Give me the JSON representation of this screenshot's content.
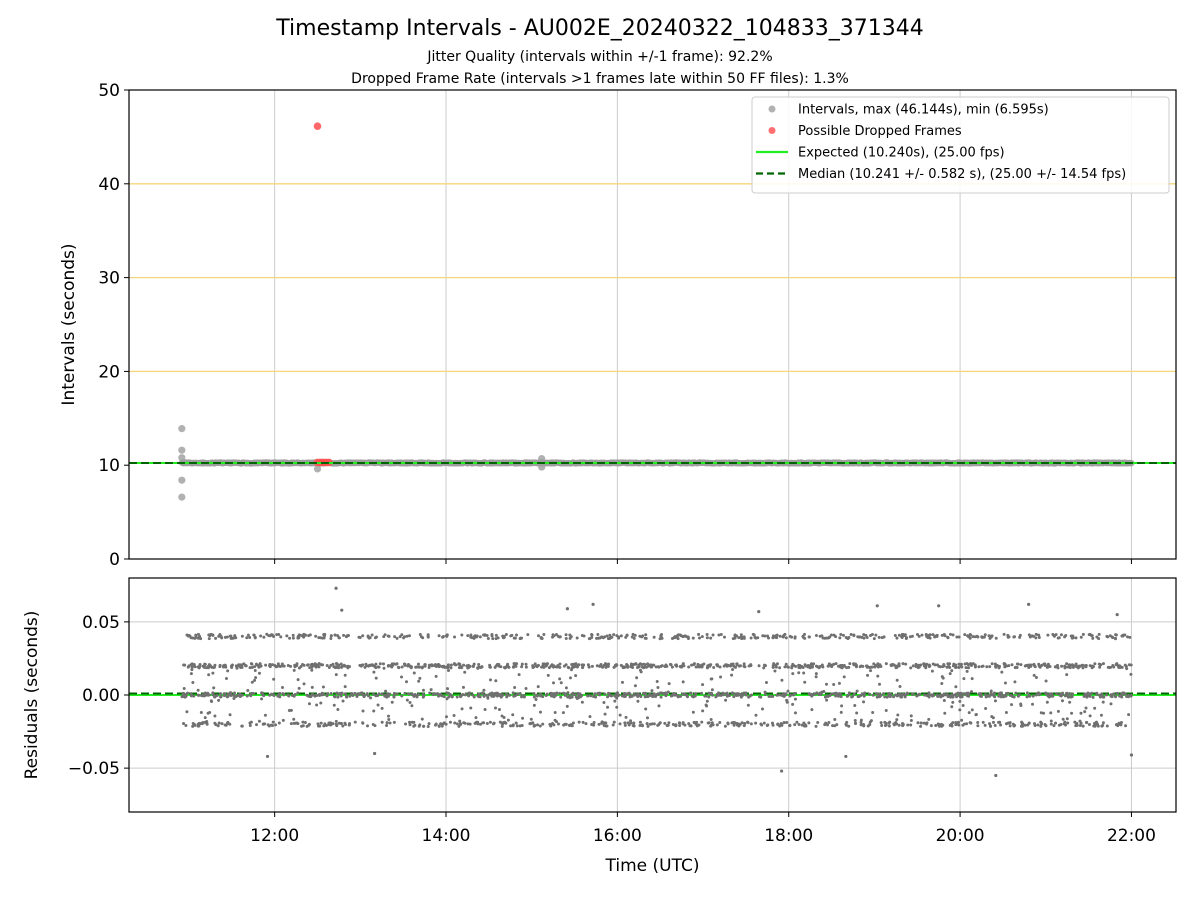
{
  "figure": {
    "title": "Timestamp Intervals - AU002E_20240322_104833_371344",
    "subtitle_1": "Jitter Quality (intervals within +/-1 frame): 92.2%",
    "subtitle_2": "Dropped Frame Rate (intervals >1 frames late within 50 FF files): 1.3%"
  },
  "chart_data": [
    {
      "type": "scatter",
      "panel": "intervals",
      "ylabel": "Intervals (seconds)",
      "ylim": [
        0,
        50
      ],
      "yticks": [
        0,
        10,
        20,
        30,
        40,
        50
      ],
      "ytick_labels": [
        "0",
        "10",
        "20",
        "30",
        "40",
        "50"
      ],
      "xlim_hours": [
        10.3,
        22.52
      ],
      "xticks_hours": [
        12,
        14,
        16,
        18,
        20,
        22
      ],
      "grid": {
        "vertical": true,
        "horizontal_lines": [
          20,
          30,
          40
        ],
        "horizontal_color": "#f5d67a"
      },
      "legend_position": "top-right",
      "legend": [
        {
          "label": "Intervals, max (46.144s), min (6.595s)",
          "marker": "dot",
          "color": "#9e9e9e"
        },
        {
          "label": "Possible Dropped Frames",
          "marker": "dot",
          "color": "#ff4d4d"
        },
        {
          "label": "Expected (10.240s), (25.00 fps)",
          "marker": "line",
          "color": "#22ee22"
        },
        {
          "label": "Median (10.241 +/- 0.582 s), (25.00 +/- 14.54 fps)",
          "marker": "dashed",
          "color": "#006400"
        }
      ],
      "expected_interval": 10.24,
      "median_interval": 10.241,
      "series": [
        {
          "name": "Intervals, max (46.144s), min (6.595s)",
          "color": "#9e9e9e",
          "band": {
            "x_start": "10:55",
            "x_end": "22:00",
            "y": 10.24
          },
          "outliers": [
            {
              "x": "10:55",
              "y": 13.9
            },
            {
              "x": "10:55",
              "y": 11.6
            },
            {
              "x": "10:55",
              "y": 10.8
            },
            {
              "x": "10:55",
              "y": 8.4
            },
            {
              "x": "10:55",
              "y": 6.595
            },
            {
              "x": "12:30",
              "y": 9.6
            },
            {
              "x": "15:07",
              "y": 10.7
            },
            {
              "x": "15:07",
              "y": 9.8
            }
          ]
        },
        {
          "name": "Possible Dropped Frames",
          "color": "#ff4d4d",
          "points": [
            {
              "x": "12:30",
              "y": 46.144
            },
            {
              "x": "12:30",
              "y": 10.3
            },
            {
              "x": "12:32",
              "y": 10.3
            },
            {
              "x": "12:34",
              "y": 10.3
            },
            {
              "x": "12:36",
              "y": 10.3
            },
            {
              "x": "12:38",
              "y": 10.3
            }
          ]
        }
      ]
    },
    {
      "type": "scatter",
      "panel": "residuals",
      "xlabel": "Time (UTC)",
      "ylabel": "Residuals (seconds)",
      "ylim": [
        -0.08,
        0.08
      ],
      "yticks": [
        -0.05,
        0.0,
        0.05
      ],
      "ytick_labels": [
        "−0.05",
        "0.00",
        "0.05"
      ],
      "xlim_hours": [
        10.3,
        22.52
      ],
      "xticks_hours": [
        12,
        14,
        16,
        18,
        20,
        22
      ],
      "xtick_labels": [
        "12:00",
        "14:00",
        "16:00",
        "18:00",
        "20:00",
        "22:00"
      ],
      "grid": true,
      "expected_line": 0.0,
      "median_line": 0.001,
      "series": [
        {
          "name": "Residuals",
          "color": "#707070",
          "x_range": [
            "10:55",
            "22:00"
          ],
          "levels": [
            {
              "y": 0.04,
              "spread": 0.0015,
              "share": 0.17
            },
            {
              "y": 0.02,
              "spread": 0.0015,
              "share": 0.27
            },
            {
              "y": 0.0,
              "spread": 0.0015,
              "share": 0.26
            },
            {
              "y": -0.02,
              "spread": 0.0015,
              "share": 0.17
            },
            {
              "y": 0.0,
              "spread": 0.02,
              "share": 0.13
            }
          ],
          "outliers": [
            {
              "x": "12:43",
              "y": 0.073
            },
            {
              "x": "12:47",
              "y": 0.058
            },
            {
              "x": "15:25",
              "y": 0.059
            },
            {
              "x": "15:43",
              "y": 0.062
            },
            {
              "x": "17:39",
              "y": 0.057
            },
            {
              "x": "19:02",
              "y": 0.061
            },
            {
              "x": "19:45",
              "y": 0.061
            },
            {
              "x": "20:48",
              "y": 0.062
            },
            {
              "x": "21:50",
              "y": 0.055
            },
            {
              "x": "11:55",
              "y": -0.042
            },
            {
              "x": "13:10",
              "y": -0.04
            },
            {
              "x": "17:55",
              "y": -0.052
            },
            {
              "x": "18:40",
              "y": -0.042
            },
            {
              "x": "20:25",
              "y": -0.055
            },
            {
              "x": "22:00",
              "y": -0.041
            }
          ]
        }
      ]
    }
  ]
}
